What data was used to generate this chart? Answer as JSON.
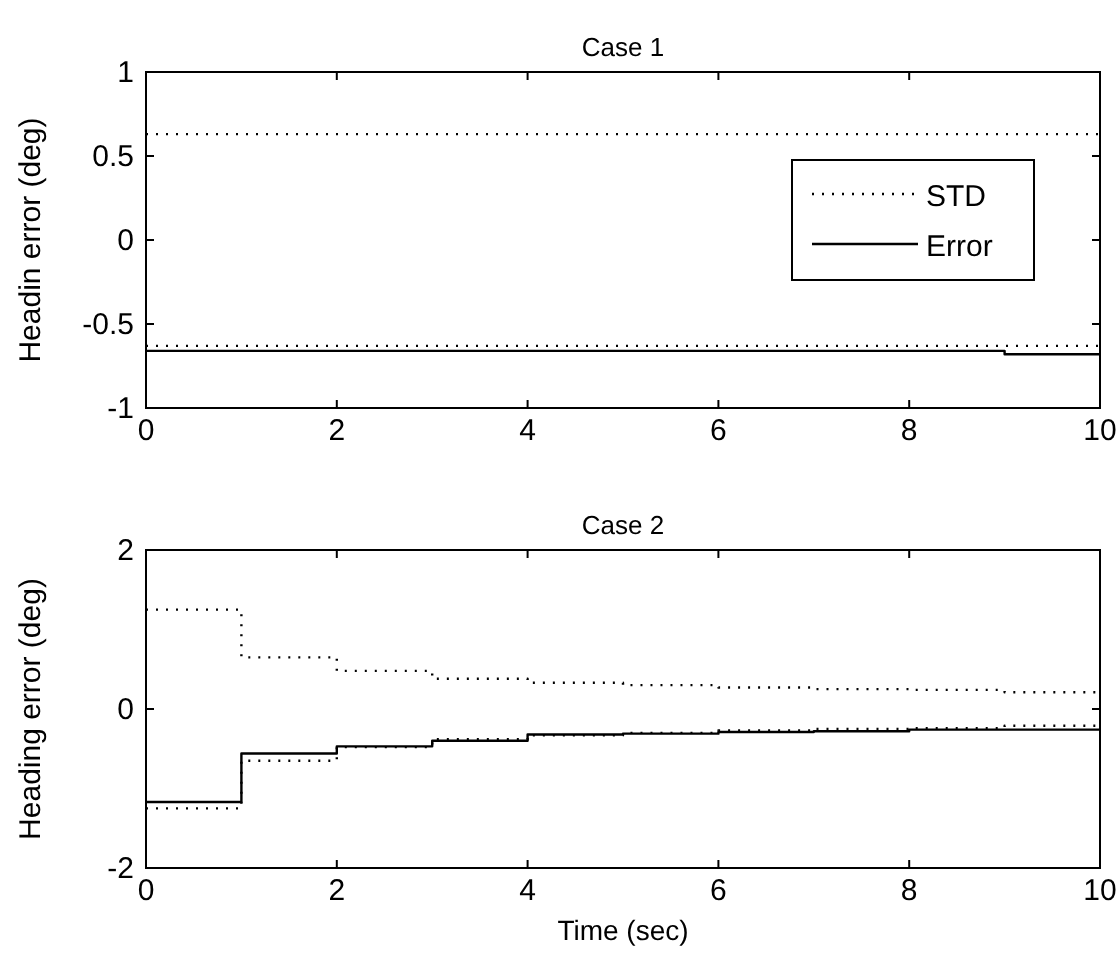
{
  "chart_data": [
    {
      "type": "step",
      "title": "Case 1",
      "ylabel": "Headin error (deg)",
      "xlim": [
        0,
        10
      ],
      "xticks": [
        0,
        2,
        4,
        6,
        8,
        10
      ],
      "ylim": [
        -1,
        1
      ],
      "yticks": [
        -1,
        -0.5,
        0,
        0.5,
        1
      ],
      "grid": false,
      "legend": "right",
      "x": [
        0,
        9,
        10
      ],
      "series": [
        {
          "name": "STD",
          "color": "#000000",
          "line_style": "dotted",
          "values": [
            0.63,
            0.63,
            0.63
          ]
        },
        {
          "color": "#000000",
          "line_style": "dotted",
          "values": [
            -0.63,
            -0.63,
            -0.63
          ]
        },
        {
          "name": "Error",
          "color": "#000000",
          "line_style": "solid",
          "values": [
            -0.66,
            -0.68,
            -0.68
          ]
        }
      ]
    },
    {
      "type": "step",
      "title": "Case 2",
      "xlabel": "Time (sec)",
      "ylabel": "Heading error (deg)",
      "xlim": [
        0,
        10
      ],
      "xticks": [
        0,
        2,
        4,
        6,
        8,
        10
      ],
      "ylim": [
        -2,
        2
      ],
      "yticks": [
        -2,
        0,
        2
      ],
      "grid": false,
      "legend": false,
      "x": [
        0,
        1,
        2,
        3,
        4,
        5,
        6,
        7,
        8,
        9,
        10
      ],
      "series": [
        {
          "color": "#000000",
          "line_style": "dotted",
          "values": [
            1.25,
            0.65,
            0.48,
            0.38,
            0.33,
            0.3,
            0.27,
            0.25,
            0.24,
            0.21,
            0.21
          ]
        },
        {
          "color": "#000000",
          "line_style": "dotted",
          "values": [
            -1.25,
            -0.65,
            -0.48,
            -0.38,
            -0.33,
            -0.3,
            -0.27,
            -0.25,
            -0.24,
            -0.21,
            -0.21
          ]
        },
        {
          "color": "#000000",
          "line_style": "solid",
          "values": [
            -1.17,
            -0.56,
            -0.47,
            -0.4,
            -0.32,
            -0.31,
            -0.29,
            -0.28,
            -0.26,
            -0.26,
            -0.26
          ]
        }
      ]
    }
  ]
}
